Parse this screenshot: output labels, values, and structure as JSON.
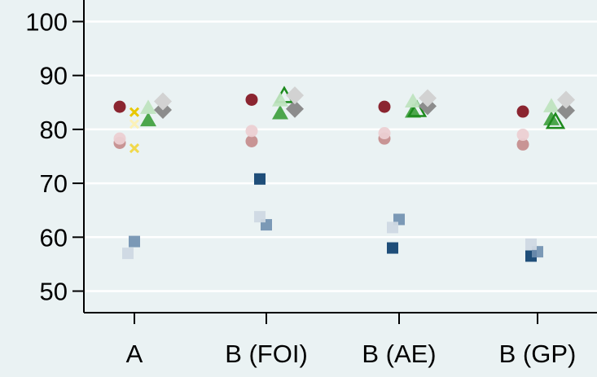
{
  "chart_data": {
    "type": "scatter",
    "title": "",
    "xlabel": "",
    "ylabel": "",
    "ylim": [
      46,
      104
    ],
    "yticks": [
      50,
      60,
      70,
      80,
      90,
      100
    ],
    "grid": true,
    "legend": "none",
    "categories": [
      "A",
      "B (FOI)",
      "B (AE)",
      "B (GP)"
    ],
    "series": [
      {
        "marker": "square",
        "color": "#1f4e79",
        "opacity": 1.0,
        "points": [
          {
            "x": "B (FOI)",
            "y": 70.8
          },
          {
            "x": "B (AE)",
            "y": 58.0
          },
          {
            "x": "B (GP)",
            "y": 56.5
          }
        ]
      },
      {
        "marker": "square",
        "color": "#6f8faf",
        "opacity": 0.9,
        "points": [
          {
            "x": "A",
            "y": 59.2
          },
          {
            "x": "B (FOI)",
            "y": 62.3
          },
          {
            "x": "B (AE)",
            "y": 63.3
          },
          {
            "x": "B (GP)",
            "y": 57.3
          }
        ]
      },
      {
        "marker": "square",
        "color": "#cfd8e3",
        "opacity": 0.95,
        "points": [
          {
            "x": "A",
            "y": 57.0
          },
          {
            "x": "B (FOI)",
            "y": 63.8
          },
          {
            "x": "B (AE)",
            "y": 61.8
          },
          {
            "x": "B (GP)",
            "y": 58.7
          }
        ]
      },
      {
        "marker": "circle",
        "color": "#8b2530",
        "opacity": 1.0,
        "points": [
          {
            "x": "A",
            "y": 84.2
          },
          {
            "x": "B (FOI)",
            "y": 85.5
          },
          {
            "x": "B (AE)",
            "y": 84.2
          },
          {
            "x": "B (GP)",
            "y": 83.3
          }
        ]
      },
      {
        "marker": "circle",
        "color": "#c48a8a",
        "opacity": 0.9,
        "points": [
          {
            "x": "A",
            "y": 77.5
          },
          {
            "x": "B (FOI)",
            "y": 77.8
          },
          {
            "x": "B (AE)",
            "y": 78.3
          },
          {
            "x": "B (GP)",
            "y": 77.2
          }
        ]
      },
      {
        "marker": "circle",
        "color": "#eccfd2",
        "opacity": 0.95,
        "points": [
          {
            "x": "A",
            "y": 78.3
          },
          {
            "x": "B (FOI)",
            "y": 79.7
          },
          {
            "x": "B (AE)",
            "y": 79.3
          },
          {
            "x": "B (GP)",
            "y": 79.0
          }
        ]
      },
      {
        "marker": "cross",
        "color": "#e8c700",
        "opacity": 1.0,
        "points": [
          {
            "x": "A",
            "y": 83.2
          }
        ]
      },
      {
        "marker": "cross",
        "color": "#f1d84a",
        "opacity": 1.0,
        "points": [
          {
            "x": "A",
            "y": 76.5
          }
        ]
      },
      {
        "marker": "cross",
        "color": "#fbf1b8",
        "opacity": 1.0,
        "points": [
          {
            "x": "A",
            "y": 81.0
          }
        ]
      },
      {
        "marker": "triangle",
        "color": "#4ca64c",
        "opacity": 1.0,
        "points": [
          {
            "x": "A",
            "y": 81.7
          },
          {
            "x": "B (FOI)",
            "y": 83.0
          },
          {
            "x": "B (AE)",
            "y": 83.3
          },
          {
            "x": "B (GP)",
            "y": 81.9
          }
        ]
      },
      {
        "marker": "triangle-hollow",
        "color": "#1d8a1d",
        "opacity": 1.0,
        "points": [
          {
            "x": "B (FOI)",
            "y": 86.2
          },
          {
            "x": "B (AE)",
            "y": 83.6
          },
          {
            "x": "B (GP)",
            "y": 81.4
          }
        ]
      },
      {
        "marker": "triangle",
        "color": "#bfe3bf",
        "opacity": 0.95,
        "points": [
          {
            "x": "A",
            "y": 84.0
          },
          {
            "x": "B (FOI)",
            "y": 85.4
          },
          {
            "x": "B (AE)",
            "y": 85.2
          },
          {
            "x": "B (GP)",
            "y": 84.3
          }
        ]
      },
      {
        "marker": "diamond",
        "color": "#8c8c8c",
        "opacity": 1.0,
        "points": [
          {
            "x": "A",
            "y": 83.6
          },
          {
            "x": "B (FOI)",
            "y": 83.8
          },
          {
            "x": "B (AE)",
            "y": 84.3
          },
          {
            "x": "B (GP)",
            "y": 83.5
          }
        ]
      },
      {
        "marker": "diamond",
        "color": "#d2d2d2",
        "opacity": 1.0,
        "points": [
          {
            "x": "A",
            "y": 85.2
          },
          {
            "x": "B (FOI)",
            "y": 86.3
          },
          {
            "x": "B (AE)",
            "y": 85.8
          },
          {
            "x": "B (GP)",
            "y": 85.5
          }
        ]
      }
    ]
  }
}
